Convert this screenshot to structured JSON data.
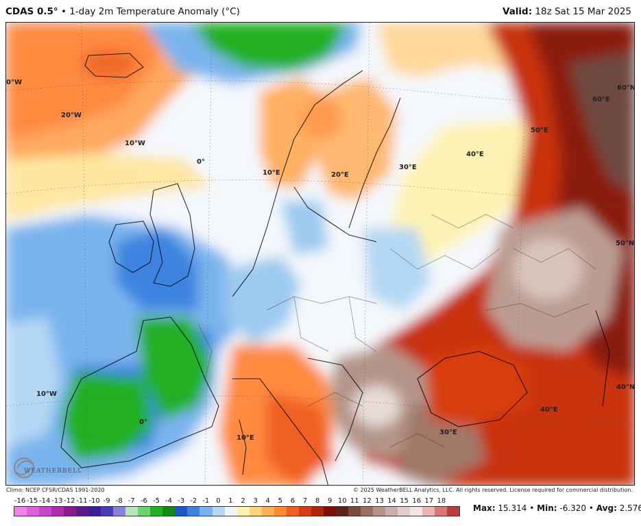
{
  "header": {
    "model": "CDAS 0.5",
    "deg": "°",
    "bullet": "•",
    "product": "1-day 2m Temperature Anomaly (°C)",
    "valid_label": "Valid:",
    "valid_time": "18z Sat 15 Mar 2025"
  },
  "map": {
    "graticule_labels": {
      "w30": "0°W",
      "w20": "20°W",
      "w10a": "10°W",
      "zero_a": "0°",
      "e10a": "10°E",
      "e20": "20°E",
      "e30a": "30°E",
      "e40a": "40°E",
      "e50": "50°E",
      "e60": "60°E",
      "e60b": "60°N",
      "n50": "50°N",
      "n40": "40°N",
      "w10b": "10°W",
      "zero_b": "0°",
      "e10b": "10°E",
      "e30b": "30°E",
      "e40b": "40°E"
    }
  },
  "logo": {
    "text": "WEATHERBELL"
  },
  "footer": {
    "climo": "Climo: NCEP CFSR/CDAS 1991-2020",
    "copyright": "© 2025 WeatherBELL Analytics, LLC. All rights reserved. License required for commercial distribution."
  },
  "stats": {
    "max_label": "Max:",
    "max": "15.314",
    "min_label": "Min:",
    "min": "-6.320",
    "avg_label": "Avg:",
    "avg": "2.576",
    "sep": "•"
  },
  "chart_data": {
    "type": "heatmap",
    "colorbar_ticks": [
      "-16",
      "-15",
      "-14",
      "-13",
      "-12",
      "-11",
      "-10",
      "-9",
      "-8",
      "-7",
      "-6",
      "-5",
      "-4",
      "-3",
      "-2",
      "-1",
      "0",
      "1",
      "2",
      "3",
      "4",
      "5",
      "6",
      "7",
      "8",
      "9",
      "10",
      "11",
      "12",
      "13",
      "14",
      "15",
      "16",
      "17",
      "18"
    ],
    "colorbar_colors": [
      "#ee82ee",
      "#e060e0",
      "#cc44cc",
      "#b02ab0",
      "#8a1a8a",
      "#5a1a8a",
      "#3c1c9c",
      "#4a3cb8",
      "#8a80d8",
      "#b8e6b8",
      "#6cd46c",
      "#22b022",
      "#118c11",
      "#1e58c8",
      "#3c84e0",
      "#7ab4ee",
      "#b4d8f4",
      "#eef4fa",
      "#fff2b0",
      "#ffd47a",
      "#ffb050",
      "#ff8a30",
      "#f06020",
      "#d83c10",
      "#b42208",
      "#7a1004",
      "#5c2418",
      "#7a4a3c",
      "#9a7064",
      "#b49488",
      "#cab0a8",
      "#e0ccc8",
      "#f2e4e2",
      "#e8b4b4",
      "#d87878",
      "#c03c3c"
    ]
  }
}
